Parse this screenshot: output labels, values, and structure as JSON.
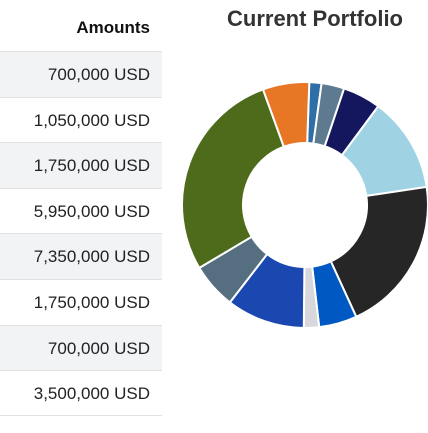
{
  "table": {
    "header": "Amounts",
    "rows": [
      "700,000 USD",
      "1,050,000 USD",
      "1,750,000 USD",
      "5,950,000 USD",
      "7,350,000 USD",
      "1,750,000 USD",
      "700,000 USD",
      "3,500,000 USD"
    ]
  },
  "chart_data": {
    "type": "pie",
    "title": "Current Portfolio",
    "donut": true,
    "slices": [
      {
        "value": 1.6,
        "color": "#2f6fa8"
      },
      {
        "value": 3.0,
        "color": "#5e7a90"
      },
      {
        "value": 5.0,
        "color": "#14175e"
      },
      {
        "value": 12.5,
        "color": "#9fd3e3"
      },
      {
        "value": 20.5,
        "color": "#262626"
      },
      {
        "value": 5.0,
        "color": "#0059c2"
      },
      {
        "value": 2.0,
        "color": "#d7d7dc"
      },
      {
        "value": 10.3,
        "color": "#1a47b0"
      },
      {
        "value": 6.0,
        "color": "#566f80"
      },
      {
        "value": 28.0,
        "color": "#4e6b1b"
      },
      {
        "value": 6.1,
        "color": "#e77625"
      }
    ]
  }
}
